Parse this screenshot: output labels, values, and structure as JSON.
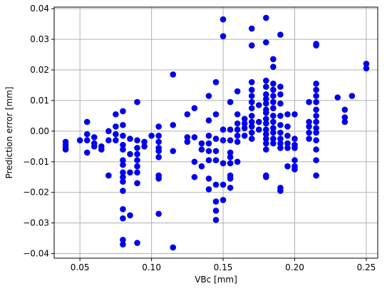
{
  "chart_data": {
    "type": "scatter",
    "title": "",
    "xlabel": "VBc [mm]",
    "ylabel": "Prediction error [mm]",
    "xlim": [
      0.032,
      0.258
    ],
    "ylim": [
      -0.0415,
      0.0405
    ],
    "xticks": [
      0.05,
      0.1,
      0.15,
      0.2,
      0.25
    ],
    "xtick_labels": [
      "0.05",
      "0.10",
      "0.15",
      "0.20",
      "0.25"
    ],
    "yticks": [
      -0.04,
      -0.03,
      -0.02,
      -0.01,
      0.0,
      0.01,
      0.02,
      0.03,
      0.04
    ],
    "ytick_labels": [
      "−0.04",
      "−0.03",
      "−0.02",
      "−0.01",
      "0.00",
      "0.01",
      "0.02",
      "0.03",
      "0.04"
    ],
    "grid": true,
    "marker_color": "#0000ee",
    "points": [
      [
        0.04,
        -0.0035
      ],
      [
        0.04,
        -0.0045
      ],
      [
        0.04,
        -0.0055
      ],
      [
        0.04,
        -0.006
      ],
      [
        0.05,
        -0.003
      ],
      [
        0.055,
        0.003
      ],
      [
        0.055,
        -0.001
      ],
      [
        0.055,
        -0.003
      ],
      [
        0.055,
        -0.007
      ],
      [
        0.06,
        -0.002
      ],
      [
        0.06,
        -0.004
      ],
      [
        0.06,
        -0.005
      ],
      [
        0.065,
        -0.005
      ],
      [
        0.065,
        -0.006
      ],
      [
        0.07,
        0.0
      ],
      [
        0.07,
        -0.003
      ],
      [
        0.07,
        -0.0145
      ],
      [
        0.075,
        0.0015
      ],
      [
        0.075,
        0.0055
      ],
      [
        0.075,
        -0.001
      ],
      [
        0.075,
        -0.003
      ],
      [
        0.08,
        0.0065
      ],
      [
        0.08,
        0.002
      ],
      [
        0.08,
        -0.0015
      ],
      [
        0.08,
        -0.0045
      ],
      [
        0.08,
        -0.006
      ],
      [
        0.08,
        -0.0095
      ],
      [
        0.08,
        -0.011
      ],
      [
        0.08,
        -0.0135
      ],
      [
        0.08,
        -0.015
      ],
      [
        0.08,
        -0.0165
      ],
      [
        0.08,
        -0.0195
      ],
      [
        0.08,
        -0.0255
      ],
      [
        0.08,
        -0.0285
      ],
      [
        0.08,
        -0.0355
      ],
      [
        0.08,
        -0.037
      ],
      [
        0.085,
        -0.0025
      ],
      [
        0.085,
        -0.0075
      ],
      [
        0.085,
        -0.0135
      ],
      [
        0.085,
        -0.0275
      ],
      [
        0.09,
        0.0095
      ],
      [
        0.09,
        -0.003
      ],
      [
        0.09,
        -0.0055
      ],
      [
        0.09,
        -0.0075
      ],
      [
        0.09,
        -0.0095
      ],
      [
        0.09,
        -0.0115
      ],
      [
        0.09,
        -0.0135
      ],
      [
        0.09,
        -0.017
      ],
      [
        0.09,
        -0.0365
      ],
      [
        0.095,
        -0.0035
      ],
      [
        0.095,
        -0.005
      ],
      [
        0.1,
        -0.0015
      ],
      [
        0.105,
        0.0015
      ],
      [
        0.105,
        -0.0015
      ],
      [
        0.105,
        -0.0035
      ],
      [
        0.105,
        -0.0055
      ],
      [
        0.105,
        -0.0065
      ],
      [
        0.105,
        -0.0085
      ],
      [
        0.105,
        -0.0145
      ],
      [
        0.105,
        -0.0155
      ],
      [
        0.105,
        -0.027
      ],
      [
        0.115,
        0.0185
      ],
      [
        0.115,
        0.002
      ],
      [
        0.115,
        -0.0065
      ],
      [
        0.115,
        -0.038
      ],
      [
        0.125,
        0.0055
      ],
      [
        0.125,
        -0.002
      ],
      [
        0.125,
        -0.0035
      ],
      [
        0.13,
        0.0075
      ],
      [
        0.13,
        -0.002
      ],
      [
        0.13,
        -0.01
      ],
      [
        0.13,
        -0.015
      ],
      [
        0.135,
        -0.004
      ],
      [
        0.135,
        -0.006
      ],
      [
        0.135,
        -0.0115
      ],
      [
        0.14,
        0.0115
      ],
      [
        0.14,
        0.0035
      ],
      [
        0.14,
        -0.0015
      ],
      [
        0.14,
        -0.004
      ],
      [
        0.14,
        -0.0065
      ],
      [
        0.14,
        -0.0095
      ],
      [
        0.14,
        -0.0155
      ],
      [
        0.14,
        -0.019
      ],
      [
        0.145,
        0.016
      ],
      [
        0.145,
        0.0055
      ],
      [
        0.145,
        -0.0025
      ],
      [
        0.145,
        -0.0065
      ],
      [
        0.145,
        -0.0095
      ],
      [
        0.145,
        -0.0175
      ],
      [
        0.145,
        -0.023
      ],
      [
        0.145,
        -0.026
      ],
      [
        0.145,
        -0.029
      ],
      [
        0.15,
        0.0365
      ],
      [
        0.15,
        0.031
      ],
      [
        0.15,
        0.0005
      ],
      [
        0.15,
        -0.003
      ],
      [
        0.15,
        -0.0105
      ],
      [
        0.15,
        -0.0175
      ],
      [
        0.15,
        -0.0225
      ],
      [
        0.155,
        0.0095
      ],
      [
        0.155,
        0.0005
      ],
      [
        0.155,
        -0.003
      ],
      [
        0.155,
        -0.007
      ],
      [
        0.155,
        -0.0085
      ],
      [
        0.155,
        -0.0105
      ],
      [
        0.155,
        -0.0145
      ],
      [
        0.155,
        -0.0155
      ],
      [
        0.155,
        -0.0185
      ],
      [
        0.16,
        0.013
      ],
      [
        0.16,
        0.0055
      ],
      [
        0.16,
        0.0025
      ],
      [
        0.16,
        0.0005
      ],
      [
        0.16,
        -0.0015
      ],
      [
        0.16,
        -0.0035
      ],
      [
        0.16,
        -0.01
      ],
      [
        0.165,
        0.004
      ],
      [
        0.165,
        0.0025
      ],
      [
        0.165,
        0.001
      ],
      [
        0.165,
        -0.0015
      ],
      [
        0.17,
        0.0335
      ],
      [
        0.17,
        0.028
      ],
      [
        0.17,
        0.016
      ],
      [
        0.17,
        0.0135
      ],
      [
        0.17,
        0.0115
      ],
      [
        0.17,
        0.0095
      ],
      [
        0.17,
        0.0075
      ],
      [
        0.17,
        0.005
      ],
      [
        0.17,
        0.003
      ],
      [
        0.17,
        0.0015
      ],
      [
        0.17,
        -0.0005
      ],
      [
        0.17,
        -0.0025
      ],
      [
        0.175,
        0.0085
      ],
      [
        0.175,
        0.003
      ],
      [
        0.175,
        0.0005
      ],
      [
        0.18,
        0.037
      ],
      [
        0.18,
        0.029
      ],
      [
        0.18,
        0.0165
      ],
      [
        0.18,
        0.0145
      ],
      [
        0.18,
        0.012
      ],
      [
        0.18,
        0.0105
      ],
      [
        0.18,
        0.009
      ],
      [
        0.18,
        0.007
      ],
      [
        0.18,
        0.006
      ],
      [
        0.18,
        0.004
      ],
      [
        0.18,
        0.0025
      ],
      [
        0.18,
        0.0005
      ],
      [
        0.18,
        -0.001
      ],
      [
        0.18,
        -0.0025
      ],
      [
        0.18,
        -0.004
      ],
      [
        0.18,
        -0.006
      ],
      [
        0.18,
        -0.0145
      ],
      [
        0.18,
        -0.015
      ],
      [
        0.185,
        0.0235
      ],
      [
        0.185,
        0.021
      ],
      [
        0.185,
        0.0155
      ],
      [
        0.185,
        0.0135
      ],
      [
        0.185,
        0.0115
      ],
      [
        0.185,
        0.0095
      ],
      [
        0.185,
        0.0075
      ],
      [
        0.185,
        0.005
      ],
      [
        0.185,
        0.003
      ],
      [
        0.185,
        0.001
      ],
      [
        0.185,
        -0.0005
      ],
      [
        0.185,
        -0.0025
      ],
      [
        0.185,
        -0.004
      ],
      [
        0.19,
        0.0315
      ],
      [
        0.19,
        0.0145
      ],
      [
        0.19,
        0.012
      ],
      [
        0.19,
        0.009
      ],
      [
        0.19,
        0.005
      ],
      [
        0.19,
        0.002
      ],
      [
        0.19,
        -0.0005
      ],
      [
        0.19,
        -0.0025
      ],
      [
        0.19,
        -0.004
      ],
      [
        0.19,
        -0.0055
      ],
      [
        0.19,
        -0.0185
      ],
      [
        0.19,
        -0.0195
      ],
      [
        0.195,
        0.0055
      ],
      [
        0.195,
        0.0015
      ],
      [
        0.195,
        -0.0015
      ],
      [
        0.195,
        -0.004
      ],
      [
        0.195,
        -0.0055
      ],
      [
        0.195,
        -0.0115
      ],
      [
        0.2,
        0.0055
      ],
      [
        0.2,
        -0.0025
      ],
      [
        0.2,
        -0.0045
      ],
      [
        0.2,
        -0.0055
      ],
      [
        0.2,
        -0.0095
      ],
      [
        0.2,
        -0.0115
      ],
      [
        0.2,
        -0.0125
      ],
      [
        0.21,
        0.0095
      ],
      [
        0.21,
        0.003
      ],
      [
        0.21,
        0.0015
      ],
      [
        0.21,
        -0.0005
      ],
      [
        0.21,
        -0.0025
      ],
      [
        0.215,
        0.0285
      ],
      [
        0.215,
        0.028
      ],
      [
        0.215,
        0.0155
      ],
      [
        0.215,
        0.0135
      ],
      [
        0.215,
        0.0115
      ],
      [
        0.215,
        0.0095
      ],
      [
        0.215,
        0.007
      ],
      [
        0.215,
        0.005
      ],
      [
        0.215,
        0.003
      ],
      [
        0.215,
        0.001
      ],
      [
        0.215,
        -0.0005
      ],
      [
        0.215,
        -0.003
      ],
      [
        0.215,
        -0.006
      ],
      [
        0.215,
        -0.0095
      ],
      [
        0.215,
        -0.0145
      ],
      [
        0.23,
        0.011
      ],
      [
        0.235,
        0.007
      ],
      [
        0.235,
        0.0045
      ],
      [
        0.235,
        0.003
      ],
      [
        0.24,
        0.0115
      ],
      [
        0.25,
        0.022
      ],
      [
        0.25,
        0.0205
      ]
    ]
  }
}
